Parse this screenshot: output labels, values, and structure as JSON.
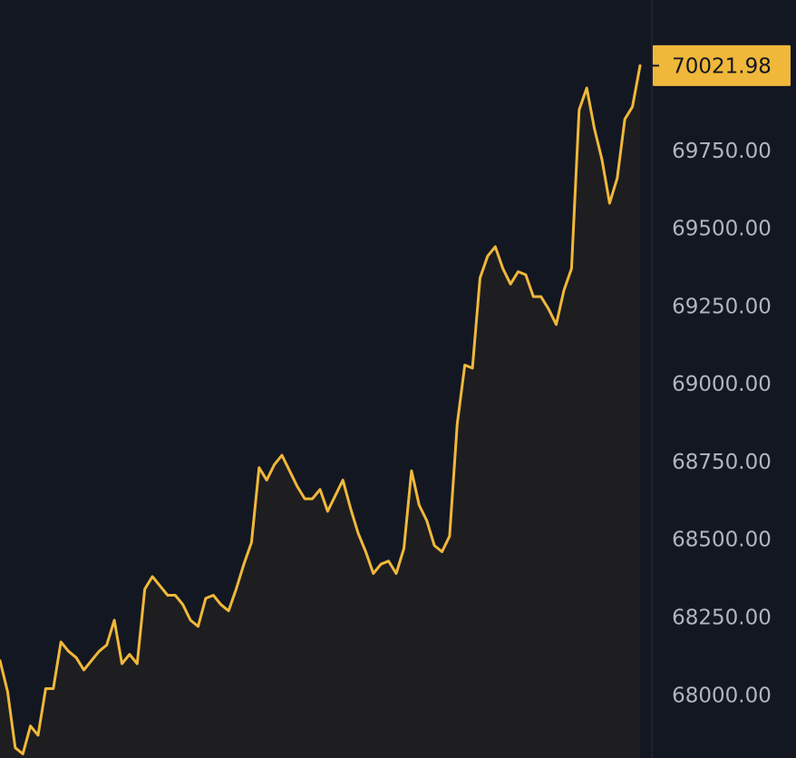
{
  "colors": {
    "background": "#131722",
    "line": "#f0b83a",
    "area_fill": "#1e1e21",
    "axis_border": "#2a2e39",
    "tick_text": "#b2b5be",
    "price_badge": "#f0b83a",
    "price_badge_text": "#131722"
  },
  "chart_data": {
    "type": "area",
    "title": "",
    "xlabel": "",
    "ylabel": "",
    "grid": false,
    "ylim": [
      67797,
      70233
    ],
    "y_ticks": [
      "69750.00",
      "69500.00",
      "69250.00",
      "69000.00",
      "68750.00",
      "68500.00",
      "68250.00",
      "68000.00"
    ],
    "y_tick_values": [
      69750,
      69500,
      69250,
      69000,
      68750,
      68500,
      68250,
      68000
    ],
    "last_price": {
      "value": 70021.98,
      "label": "70021.98"
    },
    "series": [
      {
        "values": [
          68110,
          68010,
          67830,
          67810,
          67900,
          67870,
          68020,
          68020,
          68170,
          68140,
          68120,
          68080,
          68110,
          68140,
          68160,
          68240,
          68100,
          68130,
          68100,
          68340,
          68380,
          68350,
          68320,
          68320,
          68290,
          68240,
          68220,
          68310,
          68320,
          68290,
          68270,
          68340,
          68420,
          68490,
          68730,
          68690,
          68740,
          68770,
          68720,
          68670,
          68630,
          68630,
          68660,
          68590,
          68640,
          68690,
          68600,
          68520,
          68460,
          68390,
          68420,
          68430,
          68390,
          68470,
          68720,
          68610,
          68560,
          68480,
          68460,
          68510,
          68870,
          69060,
          69050,
          69340,
          69410,
          69440,
          69370,
          69320,
          69360,
          69350,
          69280,
          69280,
          69240,
          69190,
          69300,
          69370,
          69880,
          69950,
          69820,
          69720,
          69580,
          69660,
          69850,
          69890,
          70022
        ]
      }
    ]
  }
}
